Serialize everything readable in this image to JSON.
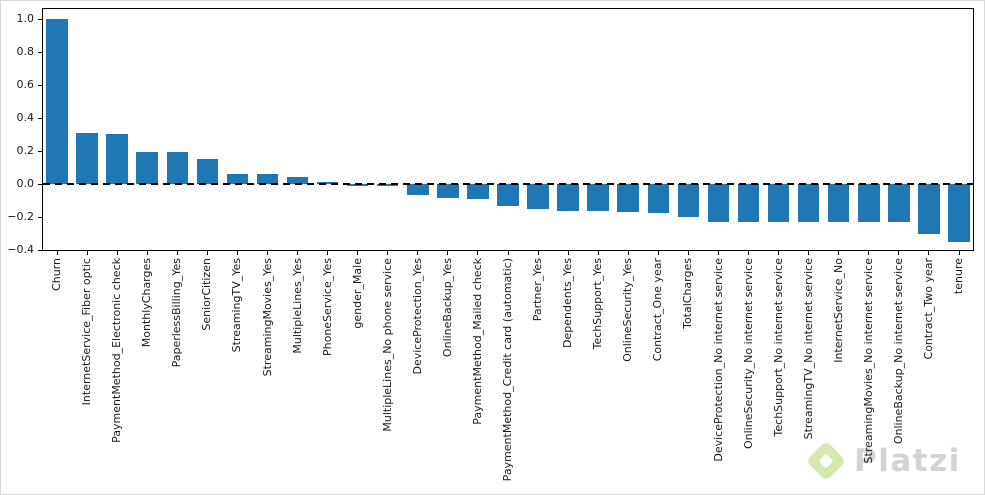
{
  "figure": {
    "background": "#ffffff",
    "frame_color": "#d9d9d9",
    "spine_color": "#000000"
  },
  "chart_data": {
    "type": "bar",
    "title": "",
    "xlabel": "",
    "ylabel": "",
    "bar_color": "#1f77b4",
    "grid": false,
    "legend": "none",
    "zero_line": {
      "value": 0.0,
      "style": "dashed",
      "color": "#000000"
    },
    "ylim": [
      -0.406,
      1.067
    ],
    "ytick_labels": [
      "1.0",
      "0.8",
      "0.6",
      "0.4",
      "0.2",
      "0.0",
      "−0.2",
      "−0.4"
    ],
    "ytick_values": [
      1.0,
      0.8,
      0.6,
      0.4,
      0.2,
      0.0,
      -0.2,
      -0.4
    ],
    "categories": [
      "Churn",
      "InternetService_Fiber optic",
      "PaymentMethod_Electronic check",
      "MonthlyCharges",
      "PaperlessBilling_Yes",
      "SeniorCitizen",
      "StreamingTV_Yes",
      "StreamingMovies_Yes",
      "MultipleLines_Yes",
      "PhoneService_Yes",
      "gender_Male",
      "MultipleLines_No phone service",
      "DeviceProtection_Yes",
      "OnlineBackup_Yes",
      "PaymentMethod_Mailed check",
      "PaymentMethod_Credit card (automatic)",
      "Partner_Yes",
      "Dependents_Yes",
      "TechSupport_Yes",
      "OnlineSecurity_Yes",
      "Contract_One year",
      "TotalCharges",
      "DeviceProtection_No internet service",
      "OnlineSecurity_No internet service",
      "TechSupport_No internet service",
      "StreamingTV_No internet service",
      "InternetService_No",
      "StreamingMovies_No internet service",
      "OnlineBackup_No internet service",
      "Contract_Two year",
      "tenure"
    ],
    "values": [
      1.0,
      0.308,
      0.302,
      0.193,
      0.192,
      0.151,
      0.063,
      0.061,
      0.04,
      0.012,
      -0.009,
      -0.012,
      -0.066,
      -0.082,
      -0.091,
      -0.134,
      -0.15,
      -0.164,
      -0.165,
      -0.171,
      -0.178,
      -0.199,
      -0.228,
      -0.228,
      -0.228,
      -0.228,
      -0.228,
      -0.228,
      -0.228,
      -0.302,
      -0.352
    ]
  },
  "watermark": {
    "text": "Platzi",
    "logo": "platzi-diamond-logo",
    "logo_color": "#98ca3f",
    "text_color": "#d4d4d4"
  }
}
